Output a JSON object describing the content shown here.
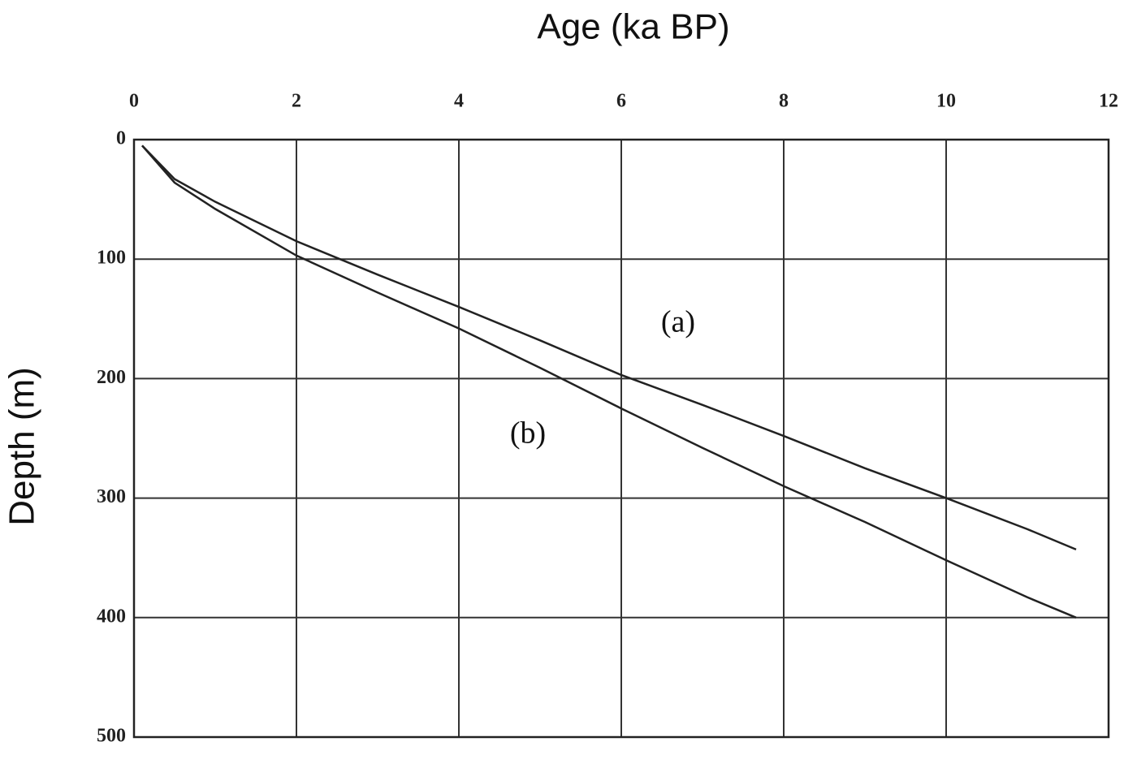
{
  "chart_data": {
    "type": "line",
    "x_label": "Age (ka BP)",
    "y_label": "Depth (m)",
    "x": [
      0.1,
      0.5,
      1,
      2,
      3,
      4,
      5,
      6,
      7,
      8,
      9,
      10,
      11,
      11.6
    ],
    "series": [
      {
        "color": "#222222",
        "values": [
          5,
          33,
          52,
          85,
          113,
          140,
          168,
          197,
          222,
          248,
          275,
          300,
          326,
          343
        ]
      },
      {
        "color": "#222222",
        "values": [
          5,
          36,
          58,
          97,
          128,
          158,
          191,
          225,
          258,
          290,
          320,
          352,
          383,
          400
        ]
      }
    ],
    "annotations": [
      "(a)",
      "(b)"
    ],
    "xlim": [
      0,
      12
    ],
    "xticks": [
      0,
      2,
      4,
      6,
      8,
      10,
      12
    ],
    "ylim": [
      0,
      500
    ],
    "yticks": [
      0,
      100,
      200,
      300,
      400,
      500
    ],
    "y_inverted": true,
    "x_axis_position": "top",
    "grid": true
  }
}
